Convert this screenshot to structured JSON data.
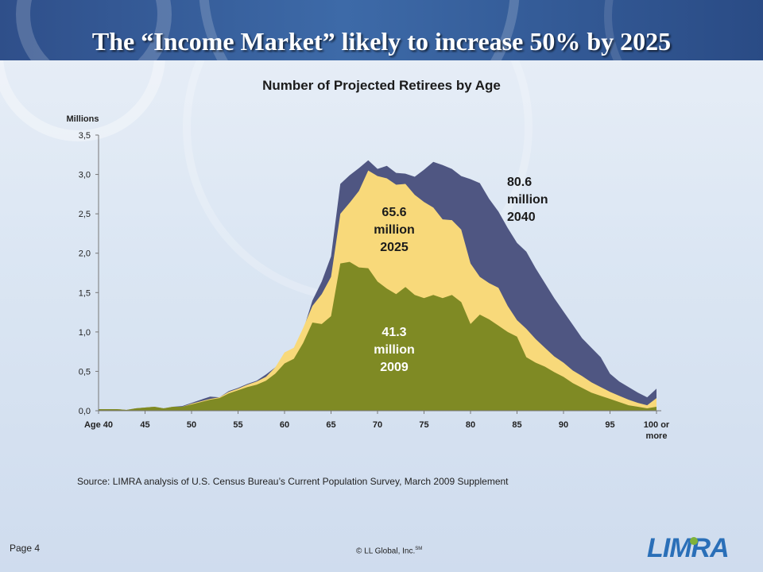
{
  "slide": {
    "title": "The “Income Market” likely to increase 50% by 2025",
    "source": "Source:  LIMRA analysis of U.S. Census Bureau’s Current Population Survey, March 2009 Supplement",
    "page": "Page 4",
    "copyright": "© LL Global, Inc.",
    "copyright_mark": "SM",
    "logo_text": "LIMRA"
  },
  "colors": {
    "series_2009": "#7f8a24",
    "series_2025": "#f8d97a",
    "series_2040": "#4f5682",
    "header": "#2f4f8a"
  },
  "chart_data": {
    "type": "area",
    "title": "Number of Projected Retirees by Age",
    "ylabel": "Millions",
    "ylim": [
      0,
      3.5
    ],
    "y_ticks": [
      "0,0",
      "0,5",
      "1,0",
      "1,5",
      "2,0",
      "2,5",
      "3,0",
      "3,5"
    ],
    "x_tick_labels": [
      "Age 40",
      "45",
      "50",
      "55",
      "60",
      "65",
      "70",
      "75",
      "80",
      "85",
      "90",
      "95",
      "100 or more"
    ],
    "x": [
      40,
      41,
      42,
      43,
      44,
      45,
      46,
      47,
      48,
      49,
      50,
      51,
      52,
      53,
      54,
      55,
      56,
      57,
      58,
      59,
      60,
      61,
      62,
      63,
      64,
      65,
      66,
      67,
      68,
      69,
      70,
      71,
      72,
      73,
      74,
      75,
      76,
      77,
      78,
      79,
      80,
      81,
      82,
      83,
      84,
      85,
      86,
      87,
      88,
      89,
      90,
      91,
      92,
      93,
      94,
      95,
      96,
      97,
      98,
      99,
      100
    ],
    "grid": false,
    "legend": "none",
    "series": [
      {
        "name": "41.3 million 2009",
        "values": [
          0.02,
          0.02,
          0.02,
          0.01,
          0.03,
          0.04,
          0.05,
          0.03,
          0.05,
          0.05,
          0.08,
          0.11,
          0.14,
          0.16,
          0.22,
          0.26,
          0.3,
          0.33,
          0.38,
          0.47,
          0.6,
          0.66,
          0.86,
          1.12,
          1.1,
          1.2,
          1.87,
          1.89,
          1.82,
          1.81,
          1.64,
          1.55,
          1.48,
          1.57,
          1.47,
          1.43,
          1.47,
          1.43,
          1.47,
          1.38,
          1.1,
          1.22,
          1.16,
          1.08,
          1.0,
          0.94,
          0.68,
          0.61,
          0.56,
          0.49,
          0.43,
          0.35,
          0.29,
          0.23,
          0.19,
          0.15,
          0.11,
          0.07,
          0.05,
          0.03,
          0.05
        ]
      },
      {
        "name": "65.6 million 2025",
        "values": [
          0.02,
          0.02,
          0.02,
          0.01,
          0.03,
          0.04,
          0.05,
          0.03,
          0.05,
          0.05,
          0.09,
          0.12,
          0.15,
          0.17,
          0.24,
          0.28,
          0.33,
          0.37,
          0.43,
          0.55,
          0.74,
          0.8,
          1.05,
          1.33,
          1.48,
          1.7,
          2.5,
          2.64,
          2.79,
          3.05,
          2.98,
          2.95,
          2.87,
          2.88,
          2.74,
          2.65,
          2.58,
          2.43,
          2.42,
          2.3,
          1.87,
          1.7,
          1.62,
          1.56,
          1.33,
          1.15,
          1.04,
          0.91,
          0.8,
          0.69,
          0.61,
          0.51,
          0.44,
          0.36,
          0.3,
          0.24,
          0.19,
          0.14,
          0.1,
          0.07,
          0.16
        ]
      },
      {
        "name": "80.6 million 2040",
        "values": [
          0.02,
          0.02,
          0.02,
          0.01,
          0.03,
          0.04,
          0.05,
          0.03,
          0.05,
          0.06,
          0.1,
          0.14,
          0.18,
          0.17,
          0.25,
          0.29,
          0.34,
          0.38,
          0.46,
          0.55,
          0.7,
          0.75,
          1.02,
          1.4,
          1.64,
          1.96,
          2.88,
          2.99,
          3.08,
          3.18,
          3.07,
          3.11,
          3.02,
          3.01,
          2.97,
          3.06,
          3.16,
          3.12,
          3.07,
          2.98,
          2.94,
          2.89,
          2.69,
          2.53,
          2.32,
          2.13,
          2.02,
          1.81,
          1.62,
          1.43,
          1.26,
          1.09,
          0.92,
          0.8,
          0.68,
          0.47,
          0.37,
          0.3,
          0.23,
          0.17,
          0.28
        ]
      }
    ],
    "annotations": [
      {
        "text": [
          "41.3",
          "million",
          "2009"
        ],
        "color": "#ffffff"
      },
      {
        "text": [
          "65.6",
          "million",
          "2025"
        ],
        "color": "#1b1b1b"
      },
      {
        "text": [
          "80.6",
          "million",
          "2040"
        ],
        "color": "#1b1b1b"
      }
    ]
  }
}
